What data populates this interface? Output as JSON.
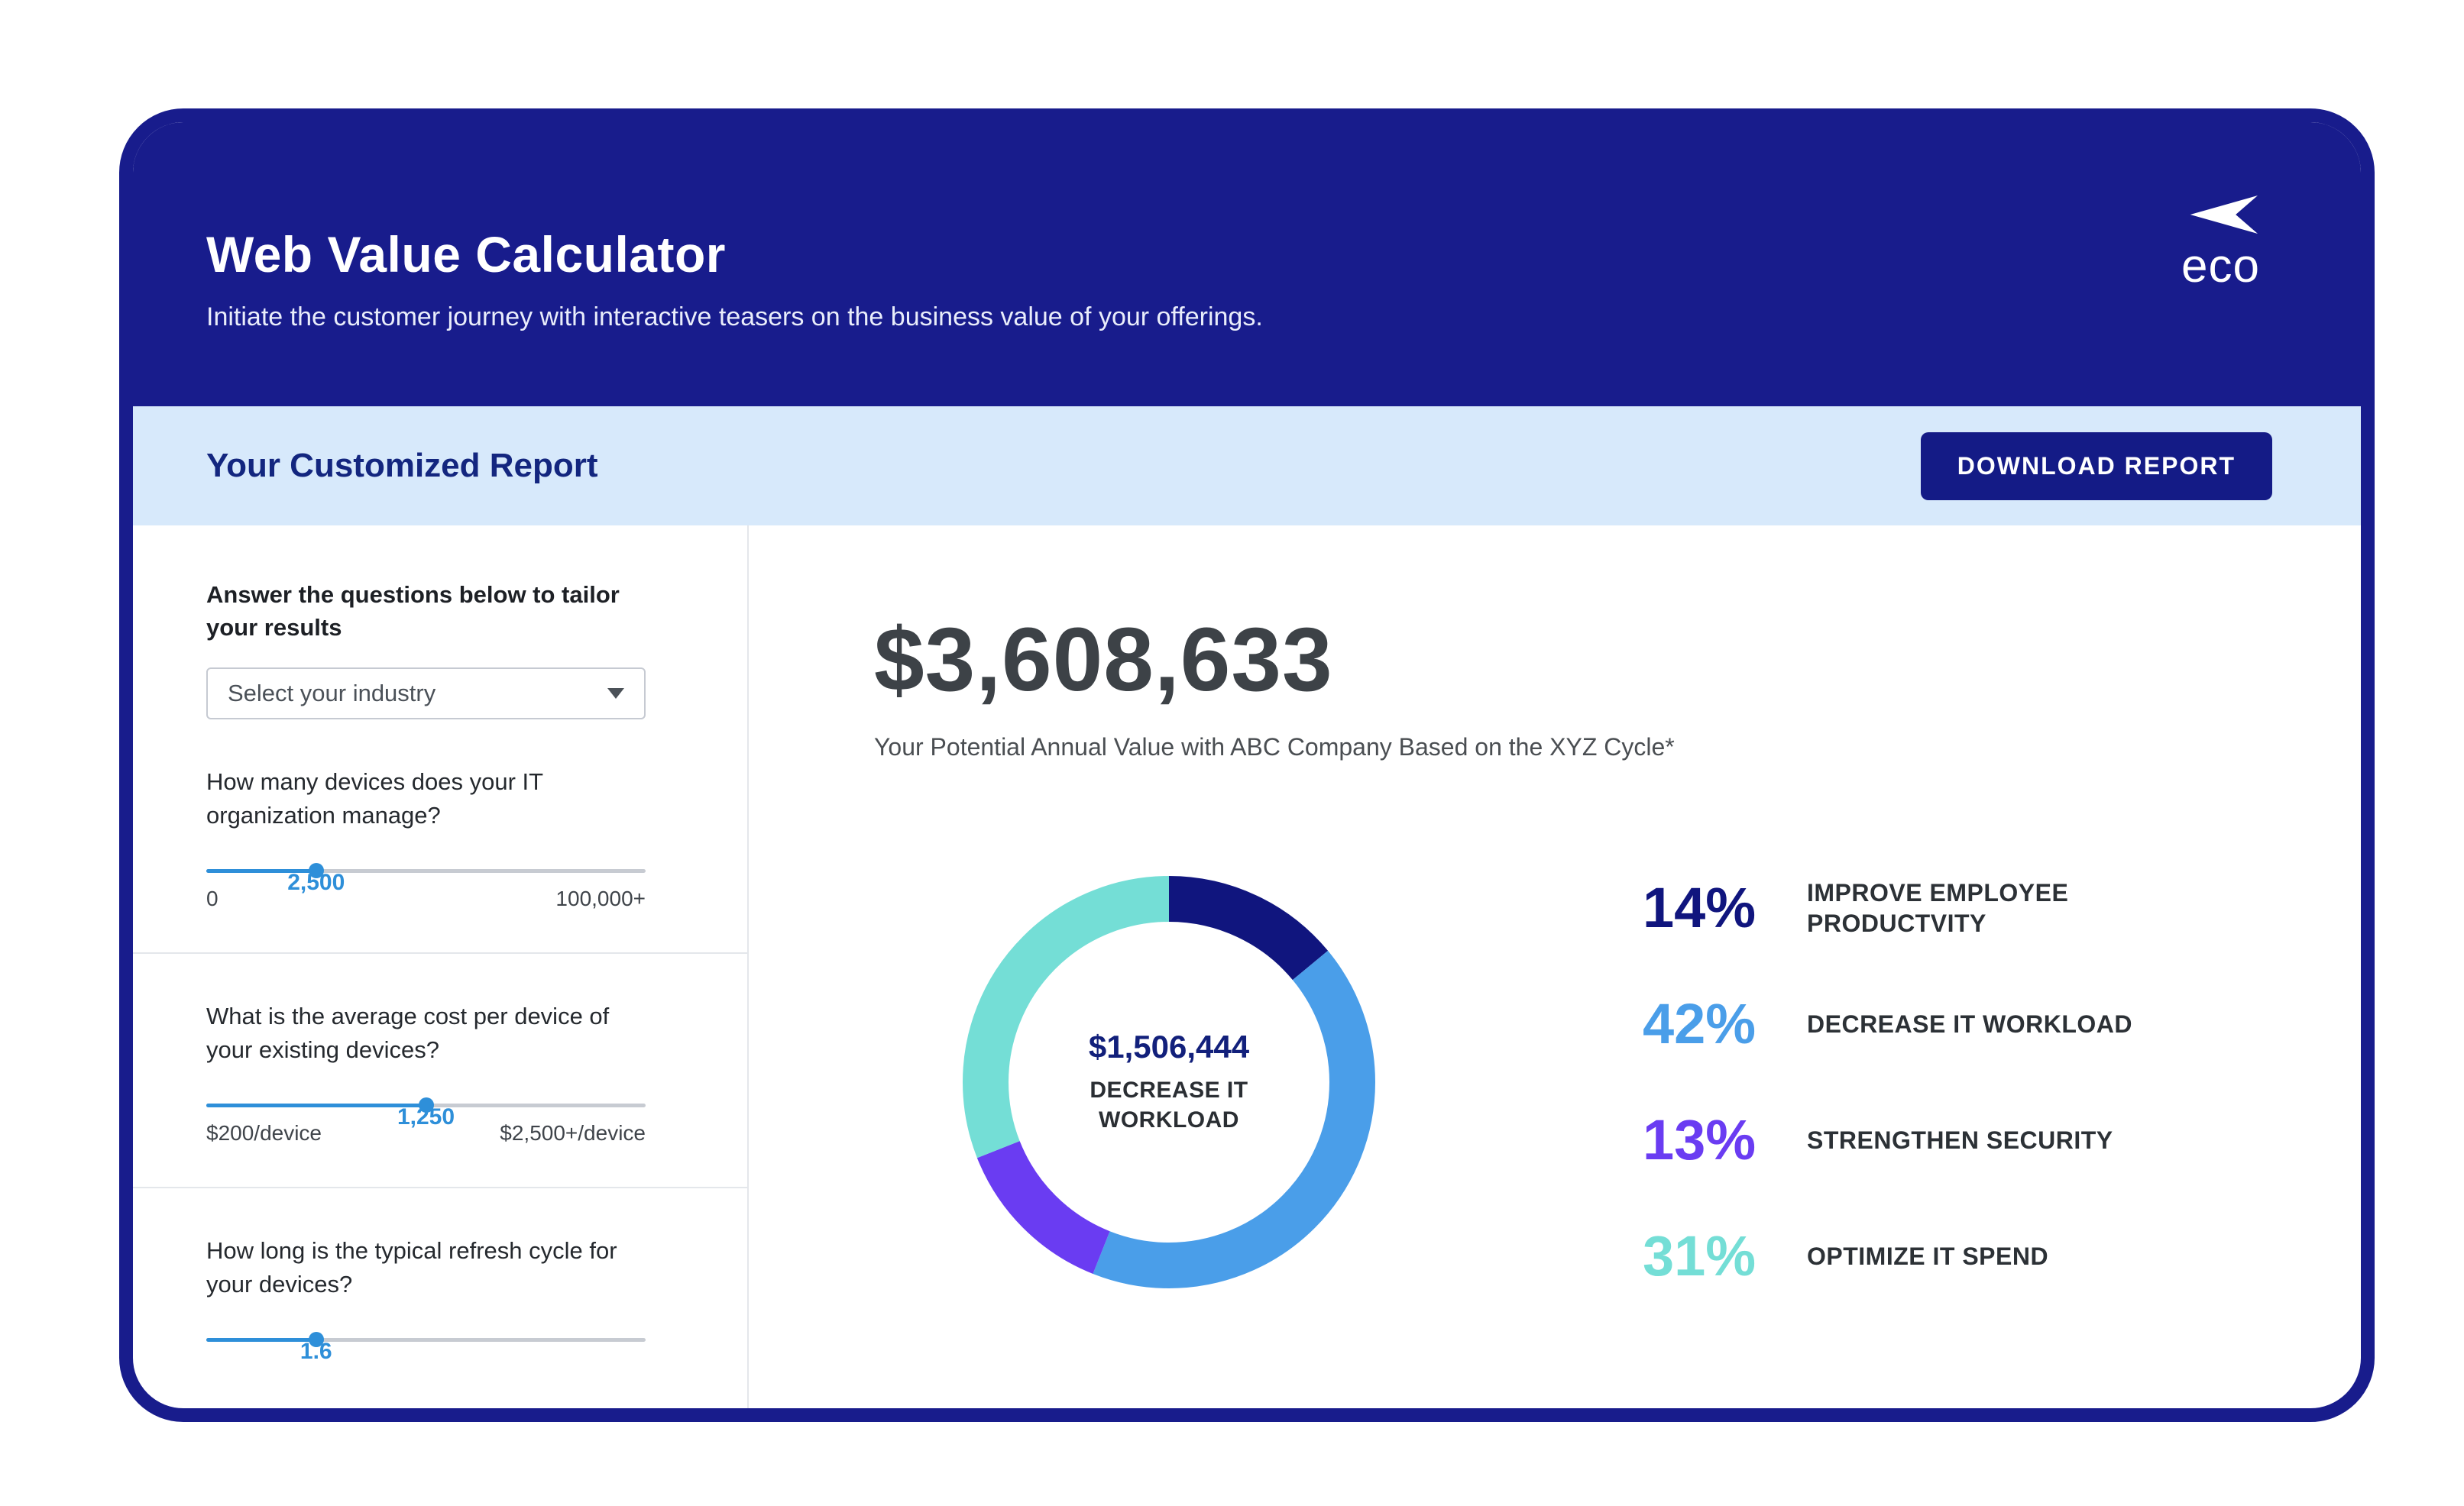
{
  "header": {
    "title": "Web Value Calculator",
    "subtitle": "Initiate the customer journey with interactive teasers on the business value of your offerings.",
    "logo_text": "eco"
  },
  "report_bar": {
    "title": "Your Customized Report",
    "download_button_label": "DOWNLOAD REPORT"
  },
  "sidebar": {
    "intro": "Answer the questions below to tailor your results",
    "industry_dropdown": {
      "selected": "Select your industry"
    },
    "sliders": [
      {
        "question": "How many devices does your IT organization manage?",
        "value": "2,500",
        "min_label": "0",
        "max_label": "100,000+",
        "percent": 25
      },
      {
        "question": "What is the average cost per device of your existing devices?",
        "value": "1,250",
        "min_label": "$200/device",
        "max_label": "$2,500+/device",
        "percent": 50
      },
      {
        "question": "How long is the typical refresh cycle for your devices?",
        "value": "1.6",
        "percent": 25
      }
    ]
  },
  "results": {
    "total_value": "$3,608,633",
    "total_caption": "Your Potential Annual Value with ABC Company Based on the XYZ Cycle*"
  },
  "chart_data": {
    "type": "pie",
    "style": "donut",
    "center_value": "$1,506,444",
    "center_label": "DECREASE IT WORKLOAD",
    "legend_position": "right",
    "segments": [
      {
        "label": "IMPROVE EMPLOYEE PRODUCTVITY",
        "percent": 14,
        "percent_label": "14%",
        "color": "#10157e"
      },
      {
        "label": "DECREASE IT WORKLOAD",
        "percent": 42,
        "percent_label": "42%",
        "color": "#4a9ee9"
      },
      {
        "label": "STRENGTHEN SECURITY",
        "percent": 13,
        "percent_label": "13%",
        "color": "#6a3cf2"
      },
      {
        "label": "OPTIMIZE IT SPEND",
        "percent": 31,
        "percent_label": "31%",
        "color": "#74ded6"
      }
    ]
  },
  "colors": {
    "navy": "#181c8c",
    "light_blue_bar": "#d7e9fb",
    "accent_blue": "#2e8fd9"
  }
}
